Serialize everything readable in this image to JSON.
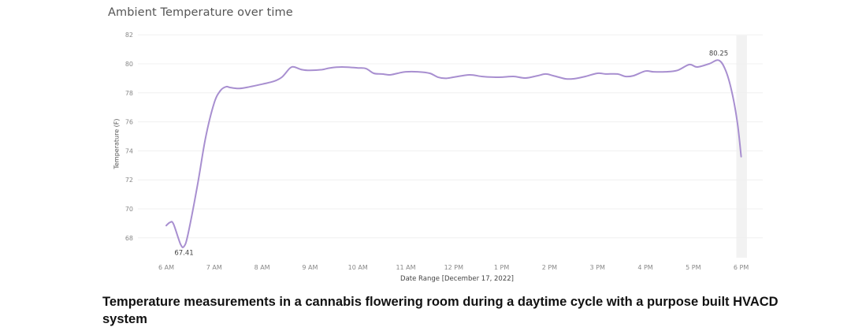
{
  "chart_data": {
    "type": "line",
    "title": "Ambient Temperature over time",
    "xlabel": "Date Range [December 17, 2022]",
    "ylabel": "Temperature (F)",
    "ylim": [
      66.5,
      82
    ],
    "yticks": [
      68,
      70,
      72,
      74,
      76,
      78,
      80,
      82
    ],
    "xticks": [
      "6 AM",
      "7 AM",
      "8 AM",
      "9 AM",
      "10 AM",
      "11 AM",
      "12 PM",
      "1 PM",
      "2 PM",
      "3 PM",
      "4 PM",
      "5 PM",
      "6 PM"
    ],
    "grid": true,
    "line_color": "#a88fd0",
    "annotations": [
      {
        "label": "67.41",
        "x_hours": 6.37,
        "value": 67.41,
        "type": "min"
      },
      {
        "label": "80.25",
        "x_hours": 17.53,
        "value": 80.25,
        "type": "max"
      }
    ],
    "series": [
      {
        "name": "Ambient Temperature",
        "x_hours": [
          6.0,
          6.08,
          6.15,
          6.3,
          6.37,
          6.45,
          6.65,
          6.82,
          7.0,
          7.13,
          7.25,
          7.33,
          7.5,
          7.67,
          8.0,
          8.25,
          8.42,
          8.58,
          8.67,
          8.83,
          9.0,
          9.25,
          9.42,
          9.67,
          10.0,
          10.17,
          10.33,
          10.5,
          10.67,
          10.83,
          11.0,
          11.25,
          11.5,
          11.67,
          11.83,
          12.0,
          12.33,
          12.58,
          12.83,
          13.0,
          13.25,
          13.5,
          13.75,
          13.92,
          14.08,
          14.33,
          14.5,
          14.75,
          15.0,
          15.17,
          15.42,
          15.58,
          15.75,
          16.0,
          16.17,
          16.42,
          16.67,
          16.92,
          17.08,
          17.33,
          17.53,
          17.67,
          17.8,
          17.92,
          18.0
        ],
        "values": [
          68.85,
          69.07,
          68.96,
          67.55,
          67.41,
          68.2,
          71.6,
          74.9,
          77.3,
          78.15,
          78.42,
          78.37,
          78.3,
          78.37,
          78.6,
          78.8,
          79.1,
          79.7,
          79.78,
          79.6,
          79.55,
          79.6,
          79.72,
          79.78,
          79.72,
          79.67,
          79.35,
          79.3,
          79.24,
          79.35,
          79.45,
          79.45,
          79.35,
          79.08,
          79.0,
          79.08,
          79.24,
          79.13,
          79.08,
          79.08,
          79.13,
          79.02,
          79.18,
          79.3,
          79.18,
          78.97,
          78.97,
          79.13,
          79.35,
          79.3,
          79.3,
          79.13,
          79.18,
          79.5,
          79.45,
          79.45,
          79.55,
          79.95,
          79.78,
          80.0,
          80.25,
          79.6,
          78.15,
          75.98,
          73.6
        ]
      }
    ],
    "shaded_region": {
      "x_start_hours": 17.9,
      "x_end_hours": 18.12,
      "color": "#f2f2f2"
    }
  },
  "caption": "Temperature measurements in a cannabis flowering room during a daytime cycle with a purpose built HVACD system"
}
